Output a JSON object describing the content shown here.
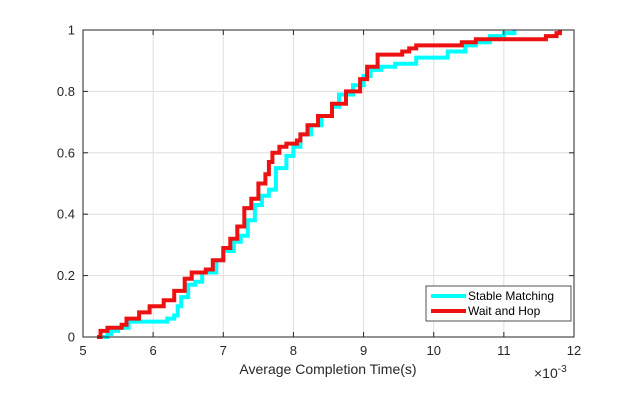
{
  "chart_data": {
    "type": "line",
    "title": "",
    "xlabel": "Average Completion Time(s)",
    "ylabel": "",
    "x_exponent_label": "×10",
    "x_exponent_power": "-3",
    "xlim": [
      5,
      12
    ],
    "ylim": [
      0,
      1
    ],
    "xticks": [
      "5",
      "6",
      "7",
      "8",
      "9",
      "10",
      "11",
      "12"
    ],
    "yticks": [
      "0",
      "0.2",
      "0.4",
      "0.6",
      "0.8",
      "1"
    ],
    "grid": true,
    "legend_position": "bottom-right",
    "series": [
      {
        "name": "Stable Matching",
        "color": "#00ffff",
        "points": [
          [
            5.28,
            0.0
          ],
          [
            5.35,
            0.01
          ],
          [
            5.4,
            0.02
          ],
          [
            5.5,
            0.03
          ],
          [
            5.65,
            0.05
          ],
          [
            6.0,
            0.05
          ],
          [
            6.2,
            0.06
          ],
          [
            6.3,
            0.07
          ],
          [
            6.35,
            0.1
          ],
          [
            6.4,
            0.13
          ],
          [
            6.5,
            0.17
          ],
          [
            6.6,
            0.18
          ],
          [
            6.7,
            0.21
          ],
          [
            6.9,
            0.25
          ],
          [
            7.0,
            0.28
          ],
          [
            7.15,
            0.31
          ],
          [
            7.25,
            0.33
          ],
          [
            7.35,
            0.38
          ],
          [
            7.45,
            0.43
          ],
          [
            7.55,
            0.46
          ],
          [
            7.65,
            0.48
          ],
          [
            7.75,
            0.55
          ],
          [
            7.9,
            0.59
          ],
          [
            8.0,
            0.62
          ],
          [
            8.1,
            0.66
          ],
          [
            8.25,
            0.69
          ],
          [
            8.4,
            0.72
          ],
          [
            8.55,
            0.75
          ],
          [
            8.65,
            0.79
          ],
          [
            8.85,
            0.82
          ],
          [
            9.0,
            0.85
          ],
          [
            9.1,
            0.87
          ],
          [
            9.25,
            0.88
          ],
          [
            9.45,
            0.89
          ],
          [
            9.75,
            0.91
          ],
          [
            10.2,
            0.93
          ],
          [
            10.45,
            0.95
          ],
          [
            10.6,
            0.96
          ],
          [
            10.8,
            0.98
          ],
          [
            11.0,
            0.99
          ],
          [
            11.15,
            1.0
          ]
        ]
      },
      {
        "name": "Wait and Hop",
        "color": "#ee1111",
        "points": [
          [
            5.2,
            0.0
          ],
          [
            5.25,
            0.02
          ],
          [
            5.35,
            0.03
          ],
          [
            5.55,
            0.04
          ],
          [
            5.62,
            0.06
          ],
          [
            5.8,
            0.08
          ],
          [
            5.95,
            0.1
          ],
          [
            6.15,
            0.12
          ],
          [
            6.3,
            0.15
          ],
          [
            6.45,
            0.19
          ],
          [
            6.55,
            0.21
          ],
          [
            6.75,
            0.22
          ],
          [
            6.85,
            0.25
          ],
          [
            7.0,
            0.29
          ],
          [
            7.1,
            0.32
          ],
          [
            7.2,
            0.36
          ],
          [
            7.3,
            0.42
          ],
          [
            7.4,
            0.45
          ],
          [
            7.5,
            0.5
          ],
          [
            7.6,
            0.53
          ],
          [
            7.65,
            0.57
          ],
          [
            7.7,
            0.6
          ],
          [
            7.8,
            0.62
          ],
          [
            7.9,
            0.63
          ],
          [
            8.05,
            0.64
          ],
          [
            8.1,
            0.66
          ],
          [
            8.2,
            0.69
          ],
          [
            8.35,
            0.72
          ],
          [
            8.55,
            0.76
          ],
          [
            8.75,
            0.8
          ],
          [
            8.95,
            0.84
          ],
          [
            9.05,
            0.88
          ],
          [
            9.2,
            0.92
          ],
          [
            9.55,
            0.93
          ],
          [
            9.65,
            0.94
          ],
          [
            9.75,
            0.95
          ],
          [
            10.4,
            0.96
          ],
          [
            10.6,
            0.97
          ],
          [
            11.6,
            0.98
          ],
          [
            11.75,
            0.99
          ],
          [
            11.8,
            1.0
          ]
        ]
      }
    ]
  }
}
